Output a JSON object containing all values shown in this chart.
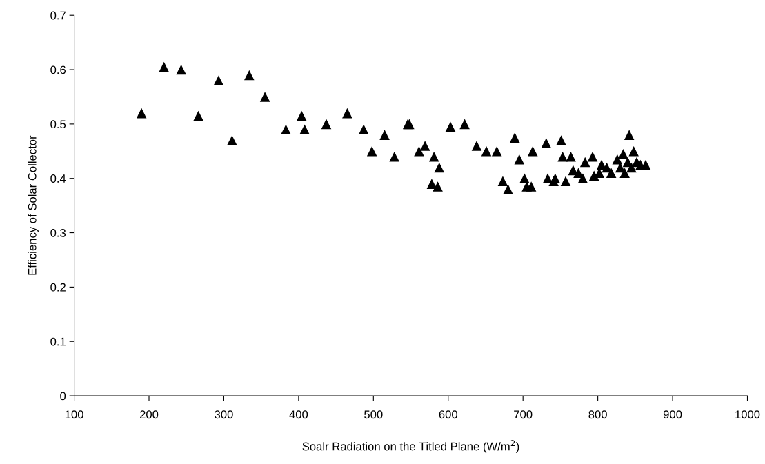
{
  "chart_data": {
    "type": "scatter",
    "xlabel": "Soalr Radiation on the Titled Plane (W/m$^{2}$)",
    "ylabel": "Efficiency of Solar Collector",
    "xlim": [
      100,
      1000
    ],
    "xticks": [
      100,
      200,
      300,
      400,
      500,
      600,
      700,
      800,
      900,
      1000
    ],
    "ylim": [
      0,
      0.7
    ],
    "yticks": [
      0,
      0.1,
      0.2,
      0.3,
      0.4,
      0.5,
      0.6,
      0.7
    ],
    "grid": false,
    "marker": "triangle",
    "series": [
      {
        "color": "#000000",
        "x": [
          190,
          220,
          243,
          266,
          293,
          311,
          334,
          355,
          383,
          404,
          408,
          437,
          465,
          487,
          498,
          515,
          528,
          546,
          548,
          561,
          569,
          578,
          581,
          586,
          588,
          603,
          622,
          638,
          651,
          665,
          673,
          680,
          689,
          695,
          702,
          705,
          711,
          713,
          731,
          733,
          741,
          743,
          751,
          753,
          757,
          764,
          767,
          774,
          780,
          783,
          793,
          795,
          802,
          805,
          812,
          818,
          826,
          830,
          834,
          836,
          840,
          842,
          845,
          848,
          852,
          857,
          864
        ],
        "values": [
          0.52,
          0.605,
          0.6,
          0.515,
          0.58,
          0.47,
          0.59,
          0.55,
          0.49,
          0.515,
          0.49,
          0.5,
          0.52,
          0.49,
          0.45,
          0.48,
          0.44,
          0.5,
          0.5,
          0.45,
          0.46,
          0.39,
          0.44,
          0.385,
          0.42,
          0.495,
          0.5,
          0.46,
          0.45,
          0.45,
          0.395,
          0.38,
          0.475,
          0.435,
          0.4,
          0.385,
          0.385,
          0.45,
          0.465,
          0.4,
          0.395,
          0.4,
          0.47,
          0.44,
          0.395,
          0.44,
          0.415,
          0.41,
          0.4,
          0.43,
          0.44,
          0.405,
          0.41,
          0.425,
          0.42,
          0.41,
          0.435,
          0.42,
          0.445,
          0.41,
          0.43,
          0.48,
          0.42,
          0.45,
          0.43,
          0.425,
          0.425
        ]
      }
    ]
  }
}
